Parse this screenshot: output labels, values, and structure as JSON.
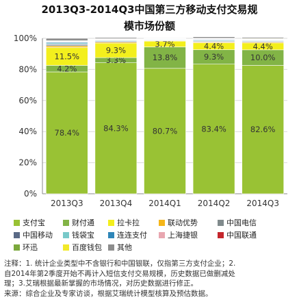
{
  "title_line1": "2013Q3-2014Q3中国第三方移动支付交易规",
  "title_line2": "模市场份额",
  "chart_data": {
    "type": "bar",
    "stacked": true,
    "percent": true,
    "categories": [
      "2013Q3",
      "2013Q4",
      "2014Q1",
      "2014Q2",
      "2014Q3"
    ],
    "ylim": [
      0,
      100
    ],
    "yticks": [
      "0%",
      "20%",
      "40%",
      "60%",
      "80%",
      "100%"
    ],
    "series": [
      {
        "name": "支付宝",
        "color": "#99c234",
        "values": [
          78.4,
          84.3,
          80.7,
          83.4,
          82.6
        ],
        "labels": [
          "78.4%",
          "84.3%",
          "80.7%",
          "83.4%",
          "82.6%"
        ]
      },
      {
        "name": "财付通",
        "color": "#82b446",
        "values": [
          4.2,
          3.3,
          13.8,
          9.3,
          10.0
        ],
        "labels": [
          "4.2%",
          "3.3%",
          "13.8%",
          "9.3%",
          "10.0%"
        ]
      },
      {
        "name": "拉卡拉",
        "color": "#f3ef1d",
        "values": [
          11.5,
          9.3,
          3.7,
          4.4,
          4.4
        ],
        "labels": [
          "11.5%",
          "9.3%",
          "3.7%",
          "4.4%",
          "4.4%"
        ]
      },
      {
        "name": "联动优势",
        "color": "#f5b619",
        "values": [
          1.0,
          0.6,
          0.3,
          0.5,
          0.5
        ]
      },
      {
        "name": "中国电信",
        "color": "#808a8c",
        "values": [
          0.6,
          0.5,
          0.3,
          0.4,
          0.4
        ]
      },
      {
        "name": "中国移动",
        "color": "#5a6a86",
        "values": [
          0.6,
          0.4,
          0.3,
          0.4,
          0.4
        ]
      },
      {
        "name": "钱袋宝",
        "color": "#78c9c9",
        "values": [
          0.7,
          0.4,
          0.3,
          0.5,
          0.4
        ]
      },
      {
        "name": "连连支付",
        "color": "#2f86b8",
        "values": [
          0.6,
          0.3,
          0.2,
          0.4,
          0.3
        ]
      },
      {
        "name": "上海捷银",
        "color": "#e8a7b0",
        "values": [
          0.3,
          0.2,
          0.1,
          0.2,
          0.2
        ]
      },
      {
        "name": "中国联通",
        "color": "#c4262c",
        "values": [
          0.3,
          0.2,
          0.1,
          0.2,
          0.2
        ]
      },
      {
        "name": "环迅",
        "color": "#7ba83c",
        "values": [
          0.2,
          0.2,
          0.1,
          0.2,
          0.2
        ]
      },
      {
        "name": "百度钱包",
        "color": "#f2e92a",
        "values": [
          0.1,
          0.1,
          0.1,
          0.2,
          0.3
        ]
      },
      {
        "name": "其他",
        "color": "#8d8d8d",
        "values": [
          1.5,
          0.7,
          0.0,
          0.9,
          0.7
        ]
      }
    ],
    "legend_position": "bottom",
    "grid": true
  },
  "notes": {
    "line1": "注释：1. 统计企业类型中不含银行和中国银联，仅指第三方支付企业；2.",
    "line2": "自2014年第2季度开始不再计入短信支付交易规模，历史数据已做删减处",
    "line3": "理；3.艾瑞根据最新掌握的市场情况，对历史数据进行修正。",
    "line4": "来源：综合企业及专家访谈，根据艾瑞统计模型核算及预估数据。"
  }
}
